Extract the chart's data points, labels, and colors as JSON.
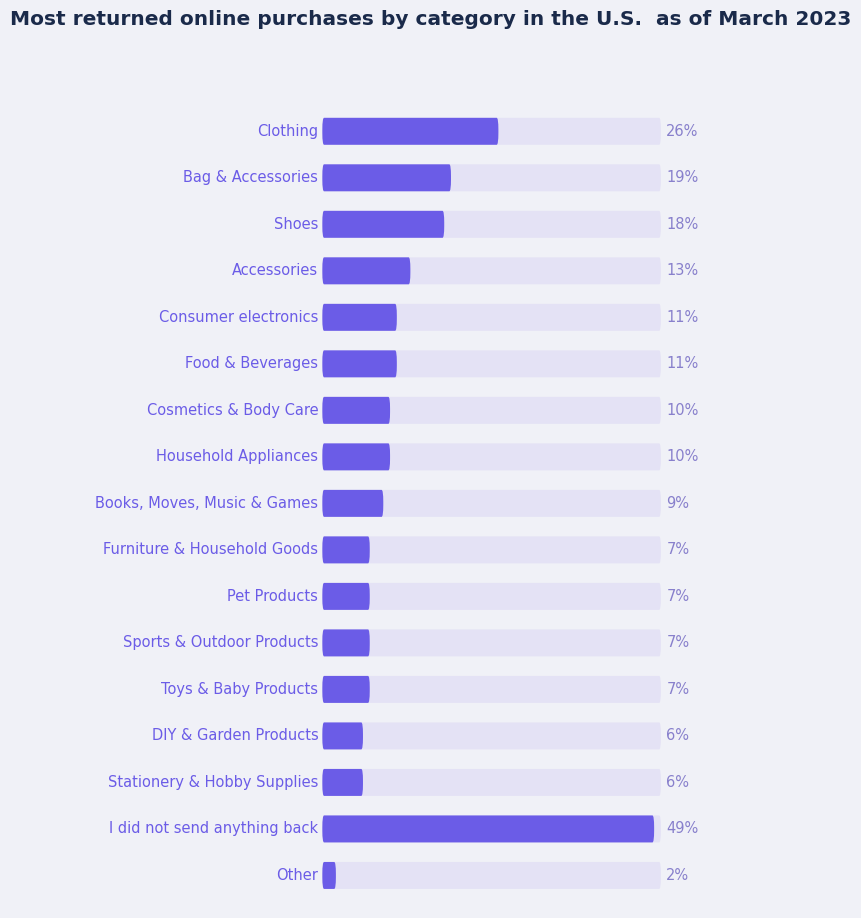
{
  "title": "Most returned online purchases by category in the U.S.  as of March 2023",
  "categories": [
    "Clothing",
    "Bag & Accessories",
    "Shoes",
    "Accessories",
    "Consumer electronics",
    "Food & Beverages",
    "Cosmetics & Body Care",
    "Household Appliances",
    "Books, Moves, Music & Games",
    "Furniture & Household Goods",
    "Pet Products",
    "Sports & Outdoor Products",
    "Toys & Baby Products",
    "DIY & Garden Products",
    "Stationery & Hobby Supplies",
    "I did not send anything back",
    "Other"
  ],
  "values": [
    26,
    19,
    18,
    13,
    11,
    11,
    10,
    10,
    9,
    7,
    7,
    7,
    7,
    6,
    6,
    49,
    2
  ],
  "bar_color": "#6B5CE7",
  "bg_bar_color": "#E4E2F5",
  "background_color": "#F0F1F7",
  "title_color": "#1a2a4a",
  "label_color": "#6B5CE7",
  "value_color": "#8880CC",
  "max_value": 50,
  "bar_height": 0.58,
  "label_fontsize": 10.5,
  "value_fontsize": 10.5,
  "title_fontsize": 14.5
}
